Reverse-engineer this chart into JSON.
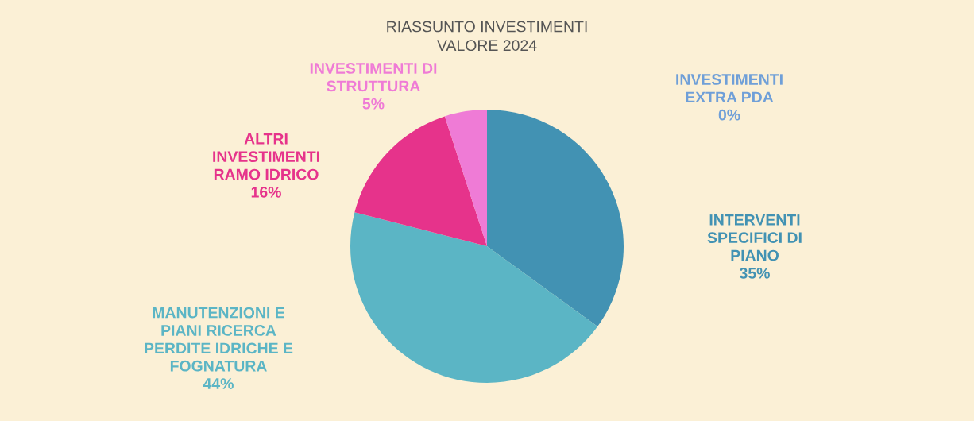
{
  "chart_data": {
    "type": "pie",
    "title": "RIASSUNTO INVESTIMENTI\nVALORE 2024",
    "categories": [
      "INTERVENTI\nSPECIFICI DI\nPIANO",
      "MANUTENZIONI E\nPIANI RICERCA\nPERDITE IDRICHE E\nFOGNATURA",
      "ALTRI\nINVESTIMENTI\nRAMO IDRICO",
      "INVESTIMENTI DI\nSTRUTTURA",
      "INVESTIMENTI\nEXTRA PDA"
    ],
    "values": [
      35,
      44,
      16,
      5,
      0
    ],
    "value_labels": [
      "35%",
      "44%",
      "16%",
      "5%",
      "0%"
    ],
    "colors": [
      "#4292b3",
      "#5bb5c5",
      "#e6338b",
      "#ef7bd6",
      "#6f9fd8"
    ]
  }
}
